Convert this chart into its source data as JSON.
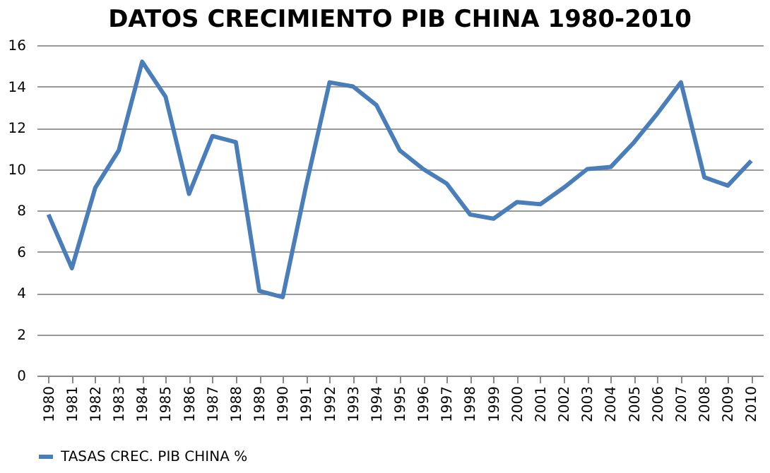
{
  "chart_data": {
    "type": "line",
    "title": "DATOS CRECIMIENTO PIB CHINA 1980-2010",
    "categories": [
      "1980",
      "1981",
      "1982",
      "1983",
      "1984",
      "1985",
      "1986",
      "1987",
      "1988",
      "1989",
      "1990",
      "1991",
      "1992",
      "1993",
      "1994",
      "1995",
      "1996",
      "1997",
      "1998",
      "1999",
      "2000",
      "2001",
      "2002",
      "2003",
      "2004",
      "2005",
      "2006",
      "2007",
      "2008",
      "2009",
      "2010"
    ],
    "series": [
      {
        "name": "TASAS CREC.  PIB CHINA %",
        "color": "#4a7ebb",
        "values": [
          7.8,
          5.2,
          9.1,
          10.9,
          15.2,
          13.5,
          8.8,
          11.6,
          11.3,
          4.1,
          3.8,
          9.2,
          14.2,
          14.0,
          13.1,
          10.9,
          10.0,
          9.3,
          7.8,
          7.6,
          8.4,
          8.3,
          9.1,
          10.0,
          10.1,
          11.3,
          12.7,
          14.2,
          9.6,
          9.2,
          10.4
        ]
      }
    ],
    "ylim": [
      0,
      16
    ],
    "yticks": [
      0,
      2,
      4,
      6,
      8,
      10,
      12,
      14,
      16
    ],
    "grid": "y",
    "legend": "bottom",
    "marker": "none",
    "line_style": "solid"
  }
}
